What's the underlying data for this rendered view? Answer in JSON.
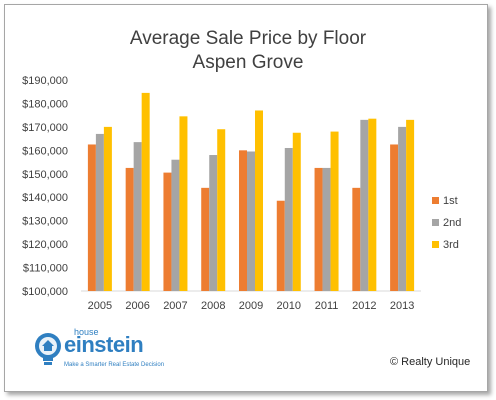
{
  "chart_data": {
    "type": "bar",
    "title": "Average Sale Price by Floor",
    "subtitle": "Aspen Grove",
    "categories": [
      "2005",
      "2006",
      "2007",
      "2008",
      "2009",
      "2010",
      "2011",
      "2012",
      "2013"
    ],
    "series": [
      {
        "name": "1st",
        "color": "#ed7d31",
        "values": [
          162500,
          152500,
          150500,
          144000,
          160000,
          138500,
          152500,
          144000,
          162500
        ]
      },
      {
        "name": "2nd",
        "color": "#a5a5a5",
        "values": [
          167000,
          163500,
          156000,
          158000,
          159500,
          161000,
          152500,
          173000,
          170000
        ]
      },
      {
        "name": "3rd",
        "color": "#ffc000",
        "values": [
          170000,
          184500,
          174500,
          169000,
          177000,
          167500,
          168000,
          173500,
          173000
        ]
      }
    ],
    "ylim": [
      100000,
      190000
    ],
    "yticks": [
      "$100,000",
      "$110,000",
      "$120,000",
      "$130,000",
      "$140,000",
      "$150,000",
      "$160,000",
      "$170,000",
      "$180,000",
      "$190,000"
    ],
    "grid": false,
    "legend": "right"
  },
  "logo": {
    "house": "house",
    "brand": "einstein",
    "tagline": "Make a Smarter Real Estate Decision"
  },
  "copyright": "© Realty Unique"
}
